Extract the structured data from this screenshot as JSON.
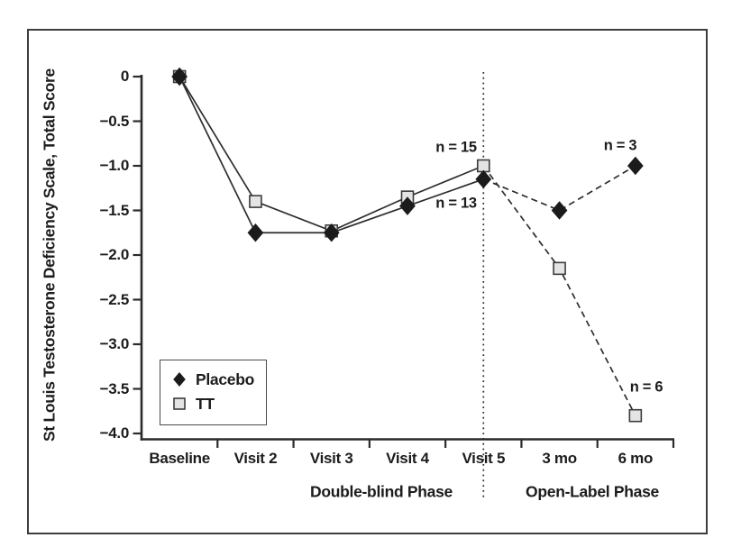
{
  "colors": {
    "ink": "#1c1c1c",
    "line": "#2e2e2e",
    "axis": "#2b2b2b",
    "placebo_fill": "#1b1b1b",
    "tt_fill": "#e4e4e4",
    "tt_stroke": "#3c3c3c",
    "background": "#ffffff"
  },
  "chart_data": {
    "type": "line",
    "title": "",
    "ylabel": "St Louis Testosterone Deficiency Scale, Total Score",
    "xlabel": "",
    "categories": [
      "Baseline",
      "Visit 2",
      "Visit 3",
      "Visit 4",
      "Visit 5",
      "3 mo",
      "6 mo"
    ],
    "ylim": [
      -4.0,
      0
    ],
    "y_ticks": [
      {
        "value": 0,
        "label": "0"
      },
      {
        "value": -0.5,
        "label": "−0.5"
      },
      {
        "value": -1.0,
        "label": "−1.0"
      },
      {
        "value": -1.5,
        "label": "−1.5"
      },
      {
        "value": -2.0,
        "label": "−2.0"
      },
      {
        "value": -2.5,
        "label": "−2.5"
      },
      {
        "value": -3.0,
        "label": "−3.0"
      },
      {
        "value": -3.5,
        "label": "−3.5"
      },
      {
        "value": -4.0,
        "label": "−4.0"
      }
    ],
    "series": [
      {
        "name": "Placebo",
        "marker": "diamond",
        "marker_fill": "#1b1b1b",
        "line_color": "#2e2e2e",
        "values": [
          0,
          -1.75,
          -1.75,
          -1.45,
          -1.15,
          -1.5,
          -1.0
        ]
      },
      {
        "name": "TT",
        "marker": "square",
        "marker_fill": "#e4e4e4",
        "marker_stroke": "#3c3c3c",
        "line_color": "#2e2e2e",
        "values": [
          0,
          -1.4,
          -1.73,
          -1.35,
          -1.0,
          -2.15,
          -3.8
        ]
      }
    ],
    "line_styles": {
      "double_blind_phase": "solid",
      "open_label_phase": "dashed"
    },
    "solid_span_categories": [
      "Baseline",
      "Visit 5"
    ],
    "dashed_span_categories": [
      "Visit 5",
      "6 mo"
    ],
    "divider": {
      "style": "dotted",
      "at_category": "Visit 5"
    },
    "phases": [
      {
        "label": "Double-blind Phase",
        "span": [
          "Baseline",
          "Visit 5"
        ]
      },
      {
        "label": "Open-Label Phase",
        "span": [
          "3 mo",
          "6 mo"
        ]
      }
    ],
    "annotations": [
      {
        "id": "n15",
        "text": "n = 15",
        "refers_to": {
          "series": "TT",
          "category": "Visit 5"
        }
      },
      {
        "id": "n13",
        "text": "n = 13",
        "refers_to": {
          "series": "Placebo",
          "category": "Visit 5"
        }
      },
      {
        "id": "n3",
        "text": "n = 3",
        "refers_to": {
          "series": "Placebo",
          "category": "6 mo"
        }
      },
      {
        "id": "n6",
        "text": "n = 6",
        "refers_to": {
          "series": "TT",
          "category": "6 mo"
        }
      }
    ],
    "legend": {
      "position": "bottom-left-inside",
      "items": [
        {
          "label": "Placebo",
          "marker": "diamond"
        },
        {
          "label": "TT",
          "marker": "square"
        }
      ]
    },
    "grid": false
  }
}
